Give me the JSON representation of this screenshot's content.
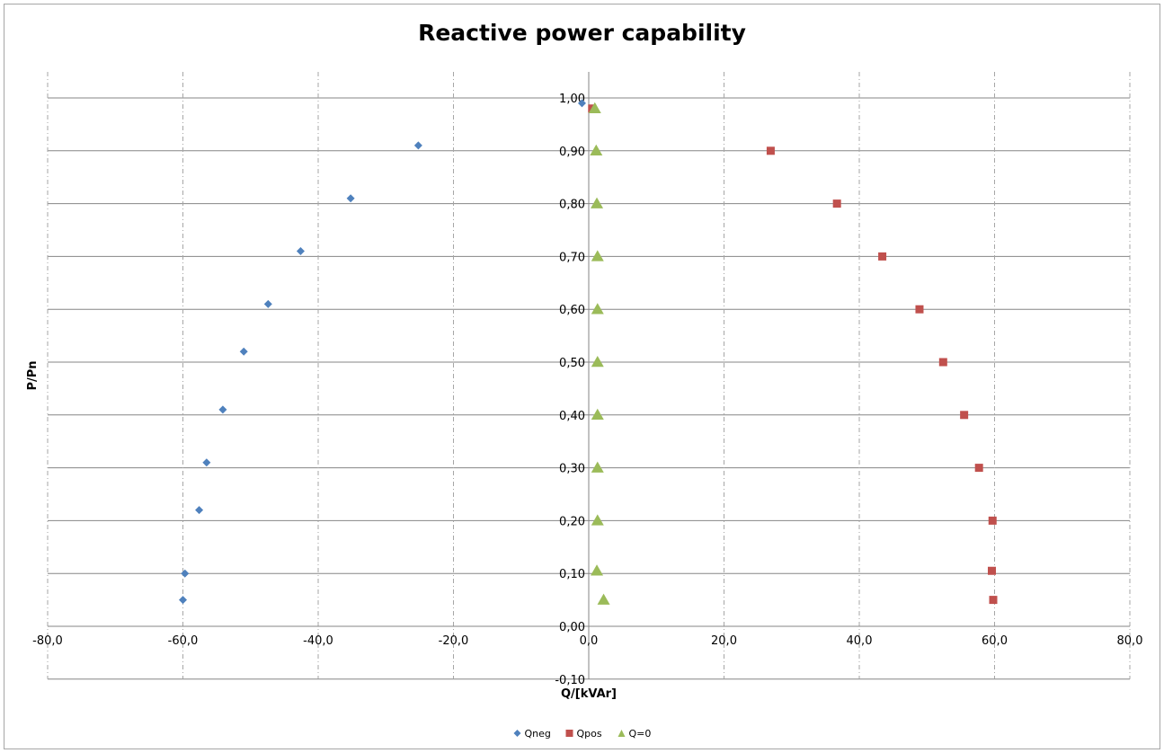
{
  "chart_data": {
    "type": "scatter",
    "title": "Reactive power capability",
    "xlabel": "Q/[kVAr]",
    "ylabel": "P/Pn",
    "xlim": [
      -80,
      80
    ],
    "ylim": [
      -0.1,
      1.0
    ],
    "x_ticks": [
      "-80,0",
      "-60,0",
      "-40,0",
      "-20,0",
      "0,0",
      "20,0",
      "40,0",
      "60,0",
      "80,0"
    ],
    "y_ticks": [
      "-0,10",
      "0,00",
      "0,10",
      "0,20",
      "0,30",
      "0,40",
      "0,50",
      "0,60",
      "0,70",
      "0,80",
      "0,90",
      "1,00"
    ],
    "grid": {
      "horizontal": "solid",
      "vertical": "dashed"
    },
    "legend_position": "bottom",
    "series": [
      {
        "name": "Qneg",
        "marker": "diamond",
        "color": "#4F81BD",
        "points": [
          {
            "x": -60.0,
            "y": 0.05
          },
          {
            "x": -59.7,
            "y": 0.1
          },
          {
            "x": -57.6,
            "y": 0.22
          },
          {
            "x": -56.5,
            "y": 0.31
          },
          {
            "x": -54.1,
            "y": 0.41
          },
          {
            "x": -51.0,
            "y": 0.52
          },
          {
            "x": -47.4,
            "y": 0.61
          },
          {
            "x": -42.6,
            "y": 0.71
          },
          {
            "x": -35.2,
            "y": 0.81
          },
          {
            "x": -25.2,
            "y": 0.91
          },
          {
            "x": -1.0,
            "y": 0.99
          }
        ]
      },
      {
        "name": "Qpos",
        "marker": "square",
        "color": "#C0504D",
        "points": [
          {
            "x": 0.5,
            "y": 0.98
          },
          {
            "x": 26.9,
            "y": 0.9
          },
          {
            "x": 36.7,
            "y": 0.8
          },
          {
            "x": 43.4,
            "y": 0.7
          },
          {
            "x": 48.9,
            "y": 0.6
          },
          {
            "x": 52.4,
            "y": 0.5
          },
          {
            "x": 55.5,
            "y": 0.4
          },
          {
            "x": 57.7,
            "y": 0.3
          },
          {
            "x": 59.7,
            "y": 0.2
          },
          {
            "x": 59.6,
            "y": 0.105
          },
          {
            "x": 59.8,
            "y": 0.05
          }
        ]
      },
      {
        "name": "Q=0",
        "marker": "triangle",
        "color": "#9BBB59",
        "points": [
          {
            "x": 0.9,
            "y": 0.98
          },
          {
            "x": 1.1,
            "y": 0.9
          },
          {
            "x": 1.2,
            "y": 0.8
          },
          {
            "x": 1.3,
            "y": 0.7
          },
          {
            "x": 1.3,
            "y": 0.6
          },
          {
            "x": 1.3,
            "y": 0.5
          },
          {
            "x": 1.3,
            "y": 0.4
          },
          {
            "x": 1.3,
            "y": 0.3
          },
          {
            "x": 1.3,
            "y": 0.2
          },
          {
            "x": 1.2,
            "y": 0.105
          },
          {
            "x": 2.2,
            "y": 0.05
          }
        ]
      }
    ]
  }
}
